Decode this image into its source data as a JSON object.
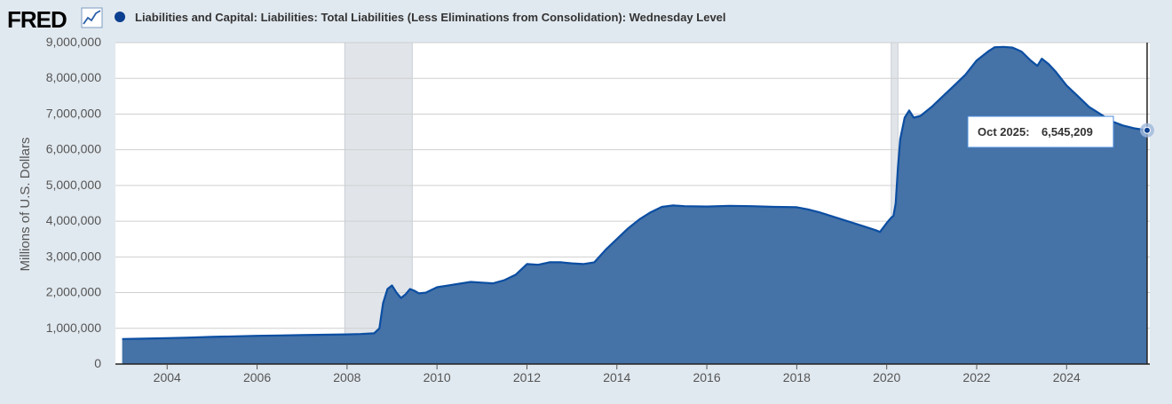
{
  "header": {
    "logo_text": "FRED",
    "series_title": "Liabilities and Capital: Liabilities: Total Liabilities (Less Eliminations from Consolidation): Wednesday Level"
  },
  "colors": {
    "page_bg": "#e1e9f0",
    "plot_bg": "#ffffff",
    "series_fill": "#4572a7",
    "series_line": "#0b4ea2",
    "recession": "#e1e5ea",
    "logo": "#000000"
  },
  "tooltip": {
    "label": "Oct 2025:",
    "value": "6,545,209"
  },
  "chart_data": {
    "type": "area",
    "title": "Liabilities and Capital: Liabilities: Total Liabilities (Less Eliminations from Consolidation): Wednesday Level",
    "xlabel": "",
    "ylabel": "Millions of U.S. Dollars",
    "xlim": [
      2002.85,
      2025.85
    ],
    "ylim": [
      0,
      9000000
    ],
    "yticks": [
      0,
      1000000,
      2000000,
      3000000,
      4000000,
      5000000,
      6000000,
      7000000,
      8000000,
      9000000
    ],
    "ytick_labels": [
      "0",
      "1,000,000",
      "2,000,000",
      "3,000,000",
      "4,000,000",
      "5,000,000",
      "6,000,000",
      "7,000,000",
      "8,000,000",
      "9,000,000"
    ],
    "xticks": [
      2004,
      2006,
      2008,
      2010,
      2012,
      2014,
      2016,
      2018,
      2020,
      2022,
      2024
    ],
    "xtick_labels": [
      "2004",
      "2006",
      "2008",
      "2010",
      "2012",
      "2014",
      "2016",
      "2018",
      "2020",
      "2022",
      "2024"
    ],
    "recessions": [
      [
        2007.95,
        2009.45
      ],
      [
        2020.1,
        2020.25
      ]
    ],
    "grid": true,
    "series": [
      {
        "name": "Total Liabilities",
        "points": [
          [
            2003.0,
            700000
          ],
          [
            2003.5,
            710000
          ],
          [
            2004.0,
            725000
          ],
          [
            2004.5,
            740000
          ],
          [
            2005.0,
            760000
          ],
          [
            2005.5,
            775000
          ],
          [
            2006.0,
            790000
          ],
          [
            2006.5,
            800000
          ],
          [
            2007.0,
            810000
          ],
          [
            2007.5,
            820000
          ],
          [
            2008.0,
            830000
          ],
          [
            2008.3,
            840000
          ],
          [
            2008.6,
            860000
          ],
          [
            2008.72,
            1000000
          ],
          [
            2008.8,
            1700000
          ],
          [
            2008.9,
            2100000
          ],
          [
            2009.0,
            2200000
          ],
          [
            2009.1,
            2000000
          ],
          [
            2009.2,
            1850000
          ],
          [
            2009.3,
            1950000
          ],
          [
            2009.4,
            2100000
          ],
          [
            2009.5,
            2050000
          ],
          [
            2009.6,
            1980000
          ],
          [
            2009.75,
            2000000
          ],
          [
            2010.0,
            2150000
          ],
          [
            2010.5,
            2250000
          ],
          [
            2010.75,
            2300000
          ],
          [
            2011.0,
            2280000
          ],
          [
            2011.25,
            2260000
          ],
          [
            2011.5,
            2350000
          ],
          [
            2011.75,
            2500000
          ],
          [
            2012.0,
            2800000
          ],
          [
            2012.25,
            2780000
          ],
          [
            2012.5,
            2850000
          ],
          [
            2012.75,
            2850000
          ],
          [
            2013.0,
            2820000
          ],
          [
            2013.25,
            2800000
          ],
          [
            2013.5,
            2850000
          ],
          [
            2013.75,
            3200000
          ],
          [
            2014.0,
            3500000
          ],
          [
            2014.25,
            3800000
          ],
          [
            2014.5,
            4050000
          ],
          [
            2014.75,
            4250000
          ],
          [
            2015.0,
            4400000
          ],
          [
            2015.25,
            4440000
          ],
          [
            2015.5,
            4420000
          ],
          [
            2016.0,
            4410000
          ],
          [
            2016.5,
            4430000
          ],
          [
            2017.0,
            4420000
          ],
          [
            2017.5,
            4400000
          ],
          [
            2018.0,
            4390000
          ],
          [
            2018.25,
            4330000
          ],
          [
            2018.5,
            4250000
          ],
          [
            2018.75,
            4150000
          ],
          [
            2019.0,
            4050000
          ],
          [
            2019.25,
            3950000
          ],
          [
            2019.5,
            3850000
          ],
          [
            2019.75,
            3750000
          ],
          [
            2019.85,
            3700000
          ],
          [
            2020.0,
            3950000
          ],
          [
            2020.1,
            4100000
          ],
          [
            2020.15,
            4150000
          ],
          [
            2020.2,
            4500000
          ],
          [
            2020.25,
            5500000
          ],
          [
            2020.3,
            6300000
          ],
          [
            2020.4,
            6900000
          ],
          [
            2020.5,
            7100000
          ],
          [
            2020.6,
            6900000
          ],
          [
            2020.75,
            6950000
          ],
          [
            2021.0,
            7200000
          ],
          [
            2021.25,
            7500000
          ],
          [
            2021.5,
            7800000
          ],
          [
            2021.75,
            8100000
          ],
          [
            2022.0,
            8500000
          ],
          [
            2022.25,
            8750000
          ],
          [
            2022.4,
            8870000
          ],
          [
            2022.6,
            8880000
          ],
          [
            2022.8,
            8860000
          ],
          [
            2023.0,
            8750000
          ],
          [
            2023.2,
            8500000
          ],
          [
            2023.35,
            8350000
          ],
          [
            2023.45,
            8550000
          ],
          [
            2023.6,
            8400000
          ],
          [
            2023.75,
            8200000
          ],
          [
            2024.0,
            7800000
          ],
          [
            2024.25,
            7500000
          ],
          [
            2024.5,
            7200000
          ],
          [
            2024.75,
            7000000
          ],
          [
            2025.0,
            6800000
          ],
          [
            2025.25,
            6680000
          ],
          [
            2025.5,
            6600000
          ],
          [
            2025.79,
            6545209
          ]
        ]
      }
    ],
    "highlight_point": [
      2025.79,
      6545209
    ]
  }
}
